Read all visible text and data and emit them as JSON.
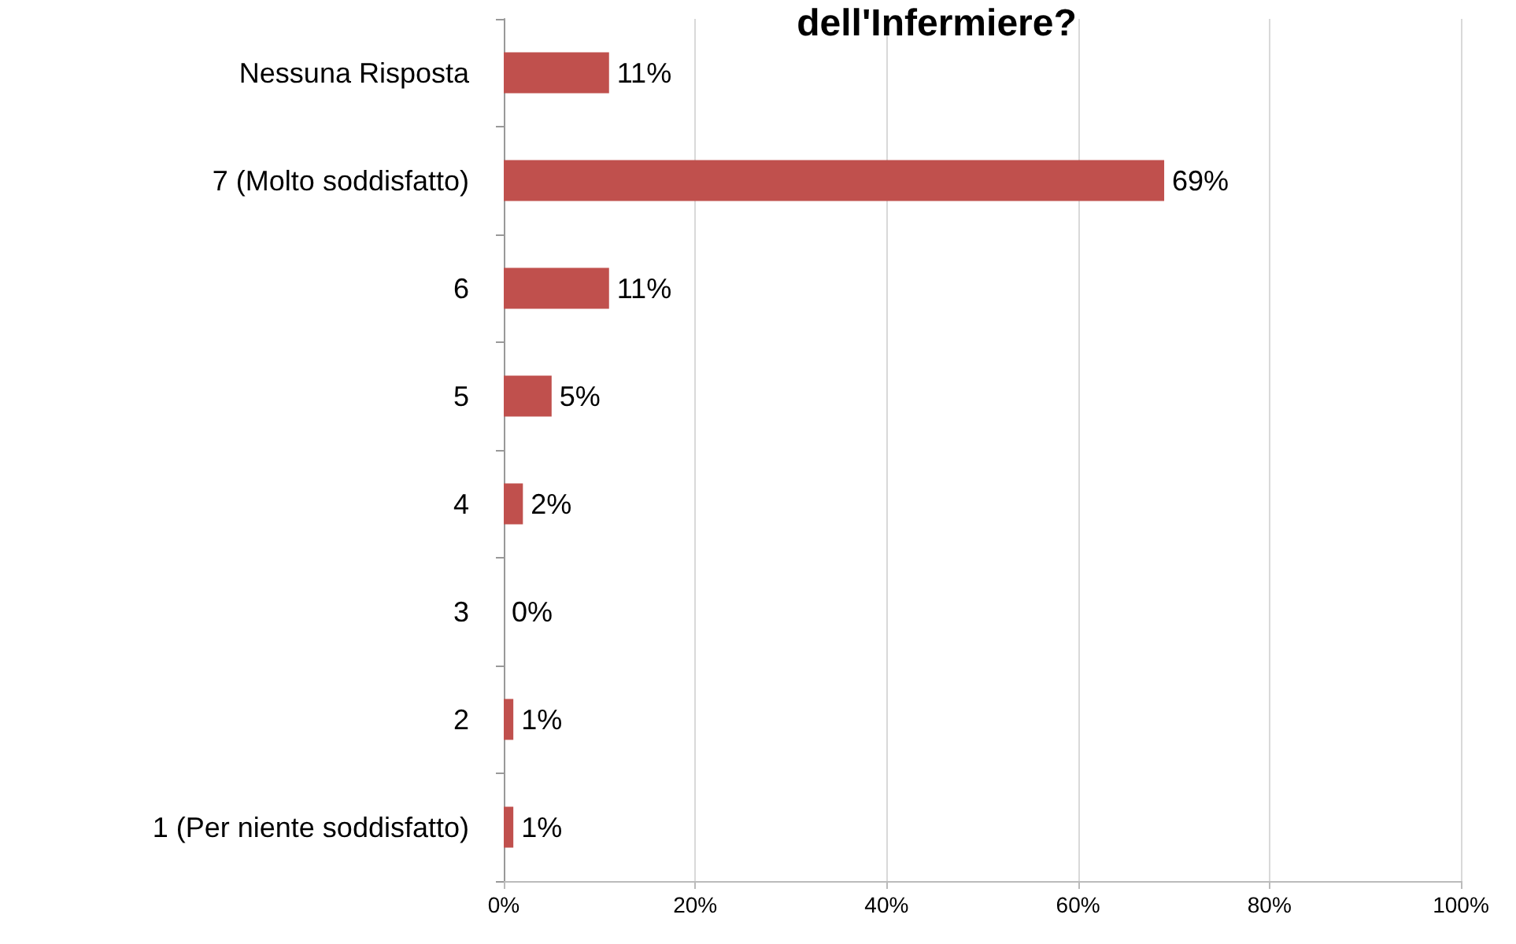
{
  "chart_data": {
    "type": "bar",
    "orientation": "horizontal",
    "title": "dell'Infermiere?",
    "categories": [
      "Nessuna Risposta",
      "7 (Molto soddisfatto)",
      "6",
      "5",
      "4",
      "3",
      "2",
      "1 (Per niente soddisfatto)"
    ],
    "values": [
      11,
      69,
      11,
      5,
      2,
      0,
      1,
      1
    ],
    "value_labels": [
      "11%",
      "69%",
      "11%",
      "5%",
      "2%",
      "0%",
      "1%",
      "1%"
    ],
    "color": "#c0504d",
    "xlim": [
      0,
      100
    ],
    "xticks": [
      {
        "value": 0,
        "label": "0%"
      },
      {
        "value": 20,
        "label": "20%"
      },
      {
        "value": 40,
        "label": "40%"
      },
      {
        "value": 60,
        "label": "60%"
      },
      {
        "value": 80,
        "label": "80%"
      },
      {
        "value": 100,
        "label": "100%"
      }
    ],
    "grid": "x"
  }
}
